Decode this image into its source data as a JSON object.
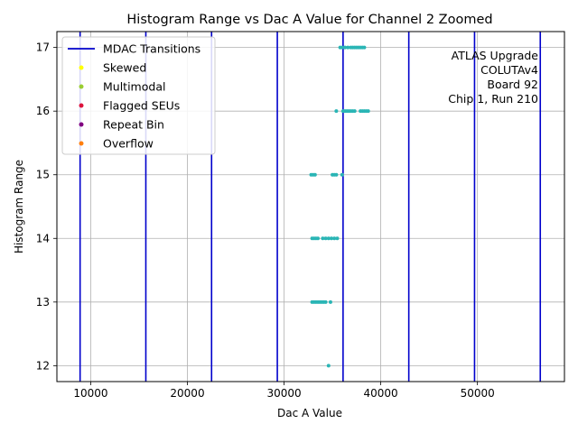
{
  "chart_data": {
    "type": "scatter",
    "title": "Histogram Range vs Dac A Value for Channel 2 Zoomed",
    "xlabel": "Dac A Value",
    "ylabel": "Histogram Range",
    "xlim": [
      6500,
      59000
    ],
    "ylim": [
      11.75,
      17.25
    ],
    "x_ticks": [
      10000,
      20000,
      30000,
      40000,
      50000
    ],
    "x_tick_labels": [
      "10000",
      "20000",
      "30000",
      "40000",
      "50000"
    ],
    "y_ticks": [
      12,
      13,
      14,
      15,
      16,
      17
    ],
    "y_tick_labels": [
      "12",
      "13",
      "14",
      "15",
      "16",
      "17"
    ],
    "grid": true,
    "legend_position": "top-left",
    "mdac_transitions": [
      8900,
      15700,
      22500,
      29300,
      36100,
      42900,
      49700,
      56500
    ],
    "legend": [
      {
        "label": "MDAC Transitions",
        "kind": "line",
        "color": "#0000cc"
      },
      {
        "label": "Skewed",
        "kind": "point",
        "color": "#ffff00"
      },
      {
        "label": "Multimodal",
        "kind": "point",
        "color": "#9acd32"
      },
      {
        "label": "Flagged SEUs",
        "kind": "point",
        "color": "#dc143c"
      },
      {
        "label": "Repeat Bin",
        "kind": "point",
        "color": "#800080"
      },
      {
        "label": "Overflow",
        "kind": "point",
        "color": "#ff7f0e"
      }
    ],
    "annotation": [
      "ATLAS Upgrade",
      "COLUTAv4",
      "Board 92",
      "Chip 1, Run 210"
    ],
    "point_color": "#2ab5b5",
    "points": [
      {
        "y": 17,
        "x": [
          35800,
          36000,
          36300,
          36600,
          36900,
          37100,
          37300,
          37500,
          37700,
          37900,
          38100,
          38300
        ]
      },
      {
        "y": 16,
        "x": [
          35400,
          36100,
          36300,
          36500,
          36700,
          36900,
          37100,
          37300,
          37900,
          38100,
          38300,
          38500,
          38700
        ]
      },
      {
        "y": 15,
        "x": [
          32800,
          33000,
          33200,
          35000,
          35200,
          35400,
          36000
        ]
      },
      {
        "y": 14,
        "x": [
          32900,
          33100,
          33300,
          33500,
          34000,
          34300,
          34600,
          34900,
          35200,
          35500
        ]
      },
      {
        "y": 13,
        "x": [
          32900,
          33100,
          33300,
          33500,
          33700,
          33900,
          34100,
          34300,
          34800
        ]
      },
      {
        "y": 12,
        "x": [
          34600
        ]
      }
    ]
  }
}
